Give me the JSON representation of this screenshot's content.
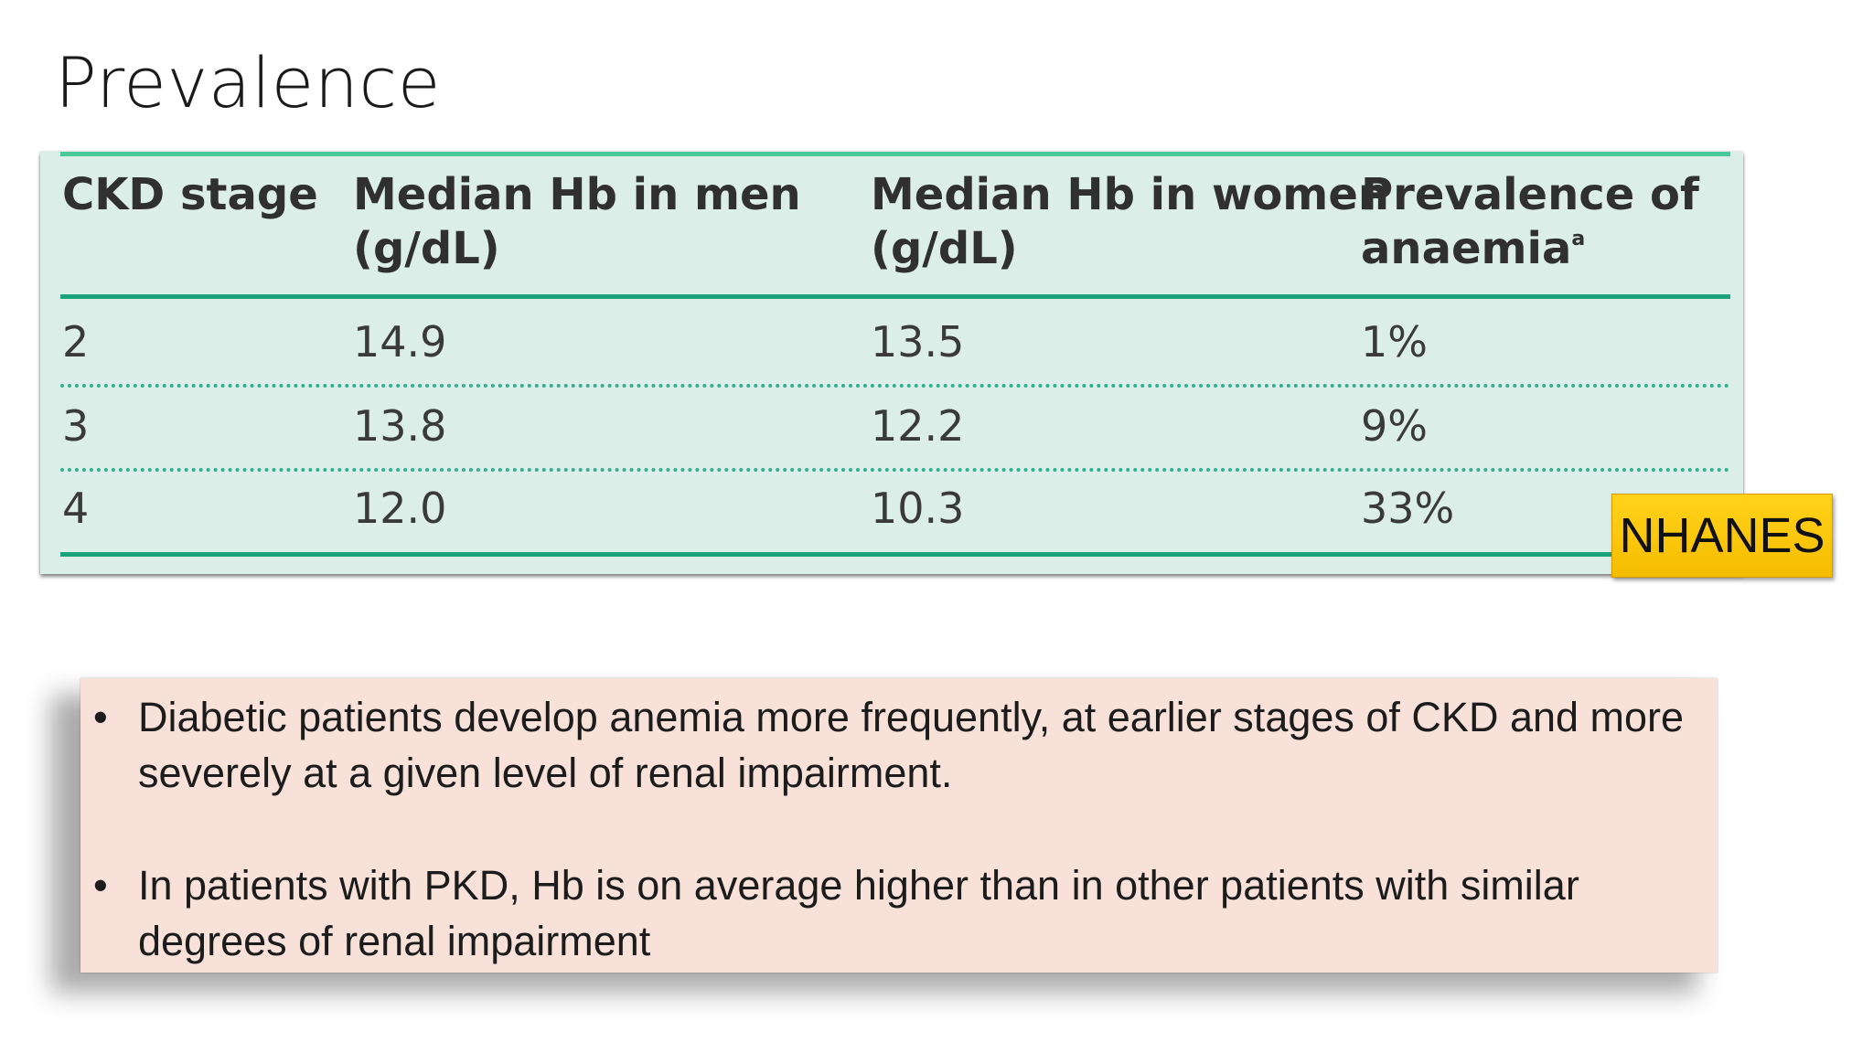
{
  "slide": {
    "title": "Prevalence"
  },
  "table": {
    "headers": [
      {
        "line1": "CKD stage",
        "line2": ""
      },
      {
        "line1": "Median Hb in men",
        "line2": "(g/dL)"
      },
      {
        "line1": "Median Hb in women",
        "line2": "(g/dL)"
      },
      {
        "line1": "Prevalence of",
        "line2": "anaemia",
        "superscript": "a"
      }
    ],
    "rows": [
      [
        "2",
        "14.9",
        "13.5",
        "1%"
      ],
      [
        "3",
        "13.8",
        "12.2",
        "9%"
      ],
      [
        "4",
        "12.0",
        "10.3",
        "33%"
      ]
    ]
  },
  "badge": {
    "label": "NHANES"
  },
  "notes": {
    "bullet_symbol": "•",
    "items": [
      "Diabetic patients develop anemia more frequently, at earlier stages of CKD and more severely at a given level of renal impairment.",
      "In patients with PKD, Hb is on average higher than in other patients with similar degrees of renal impairment"
    ]
  },
  "colors": {
    "table_background": "#dbeee8",
    "table_rule": "#1aa37a",
    "badge_background": "#ffd21a",
    "notes_background": "#f8e1d8"
  }
}
